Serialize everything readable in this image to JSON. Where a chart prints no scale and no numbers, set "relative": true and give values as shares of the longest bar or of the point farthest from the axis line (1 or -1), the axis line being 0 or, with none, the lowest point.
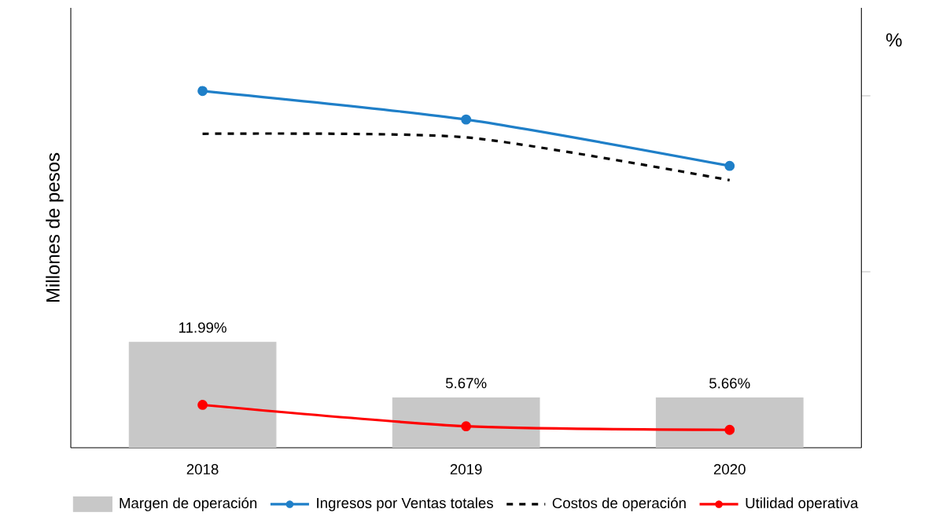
{
  "chart_data": [
    {
      "type": "bar",
      "categories": [
        "2018",
        "2019",
        "2020"
      ],
      "ylabel": "%",
      "legend": "bottom",
      "ylim": [
        0,
        50
      ],
      "yticks": [
        {
          "value": 20,
          "label": null
        },
        {
          "value": 40,
          "label": null
        }
      ],
      "series": [
        {
          "name": "Margen de operación",
          "color": "#c8c8c8",
          "values": [
            11.99,
            5.67,
            5.66
          ],
          "value_labels": [
            "11.99%",
            "5.67%",
            "5.66%"
          ]
        }
      ]
    },
    {
      "type": "line",
      "relative": true,
      "categories": [
        "2018",
        "2019",
        "2020"
      ],
      "ylabel": "Millones de pesos",
      "legend": "bottom",
      "tick_labels": false,
      "series": [
        {
          "name": "Ingresos por Ventas totales",
          "color": "#1f7fc8",
          "marker": "circle",
          "line_style": "solid",
          "values": [
            1,
            0.92,
            0.79
          ]
        },
        {
          "name": "Costos de operación",
          "color": "#000000",
          "marker": "none",
          "line_style": "dashed",
          "values": [
            0.88,
            0.87,
            0.75
          ]
        },
        {
          "name": "Utilidad operativa",
          "color": "#ff0000",
          "marker": "circle",
          "line_style": "solid",
          "values": [
            0.12,
            0.06,
            0.05
          ]
        }
      ]
    }
  ]
}
